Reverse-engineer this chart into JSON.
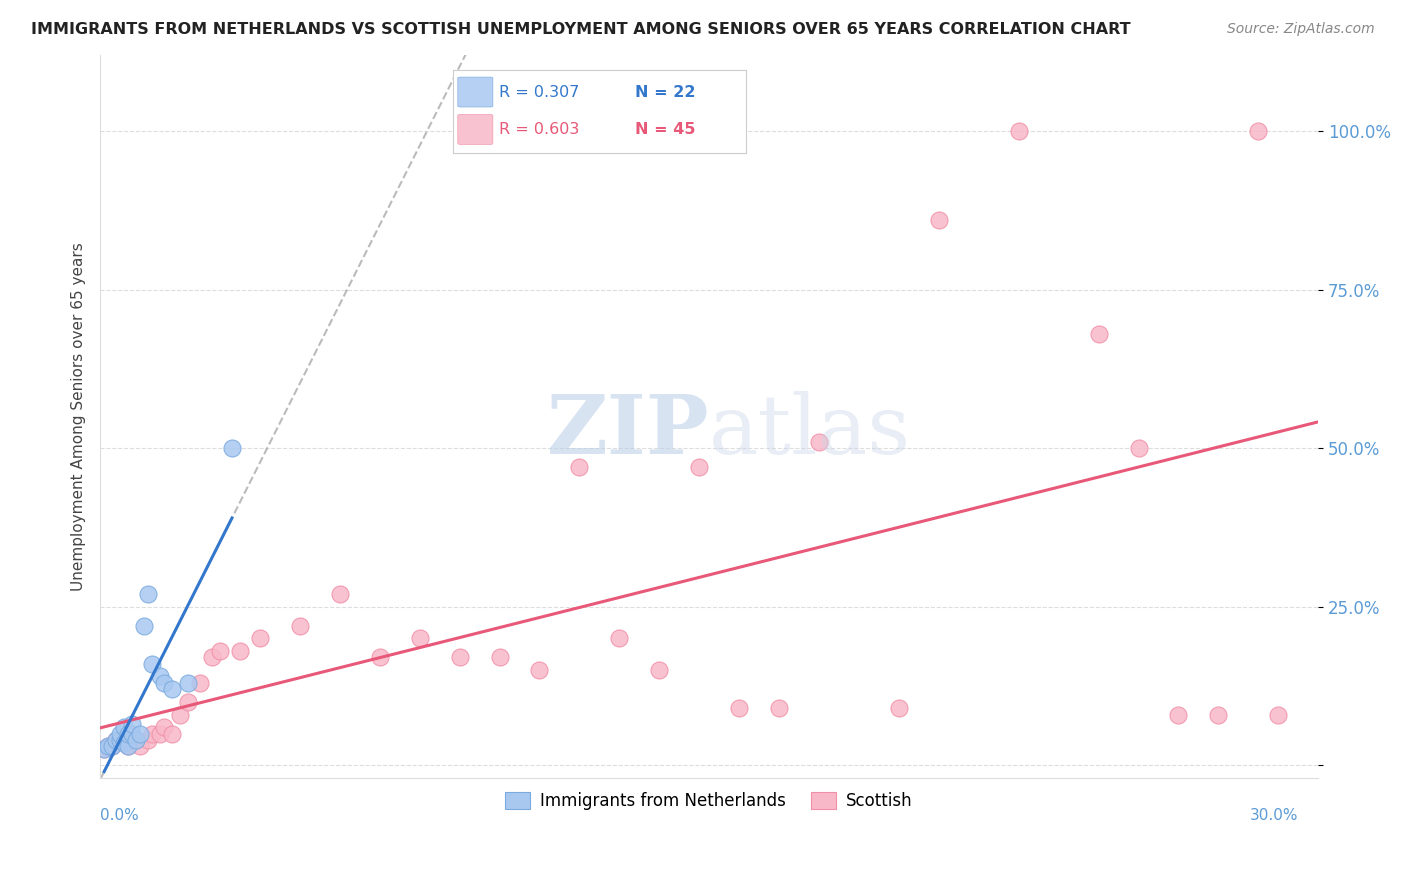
{
  "title": "IMMIGRANTS FROM NETHERLANDS VS SCOTTISH UNEMPLOYMENT AMONG SENIORS OVER 65 YEARS CORRELATION CHART",
  "source": "Source: ZipAtlas.com",
  "ylabel": "Unemployment Among Seniors over 65 years",
  "legend_blue_r": "R = 0.307",
  "legend_blue_n": "N = 22",
  "legend_pink_r": "R = 0.603",
  "legend_pink_n": "N = 45",
  "legend_label_blue": "Immigrants from Netherlands",
  "legend_label_pink": "Scottish",
  "blue_x": [
    0.001,
    0.002,
    0.003,
    0.004,
    0.005,
    0.005,
    0.006,
    0.006,
    0.007,
    0.007,
    0.008,
    0.008,
    0.009,
    0.01,
    0.011,
    0.012,
    0.013,
    0.015,
    0.016,
    0.018,
    0.022,
    0.033
  ],
  "blue_y": [
    0.025,
    0.03,
    0.03,
    0.04,
    0.04,
    0.05,
    0.035,
    0.06,
    0.03,
    0.05,
    0.05,
    0.065,
    0.04,
    0.05,
    0.22,
    0.27,
    0.16,
    0.14,
    0.13,
    0.12,
    0.13,
    0.5
  ],
  "pink_x": [
    0.001,
    0.002,
    0.003,
    0.004,
    0.005,
    0.006,
    0.007,
    0.008,
    0.009,
    0.01,
    0.012,
    0.013,
    0.015,
    0.016,
    0.018,
    0.02,
    0.022,
    0.025,
    0.028,
    0.03,
    0.035,
    0.04,
    0.05,
    0.06,
    0.07,
    0.08,
    0.09,
    0.1,
    0.11,
    0.12,
    0.13,
    0.14,
    0.15,
    0.16,
    0.17,
    0.18,
    0.2,
    0.21,
    0.23,
    0.25,
    0.26,
    0.27,
    0.28,
    0.29,
    0.295
  ],
  "pink_y": [
    0.025,
    0.03,
    0.03,
    0.04,
    0.04,
    0.04,
    0.03,
    0.04,
    0.04,
    0.03,
    0.04,
    0.05,
    0.05,
    0.06,
    0.05,
    0.08,
    0.1,
    0.13,
    0.17,
    0.18,
    0.18,
    0.2,
    0.22,
    0.27,
    0.17,
    0.2,
    0.17,
    0.17,
    0.15,
    0.47,
    0.2,
    0.15,
    0.47,
    0.09,
    0.09,
    0.51,
    0.09,
    0.86,
    1.0,
    0.68,
    0.5,
    0.08,
    0.08,
    1.0,
    0.08
  ],
  "blue_color": "#a8c8f0",
  "pink_color": "#f8b8c8",
  "blue_line_color": "#3378cc",
  "pink_line_color": "#e85878",
  "blue_dot_edge": "#7aaade",
  "pink_dot_edge": "#f090a8",
  "background_color": "#ffffff",
  "grid_color": "#dddddd",
  "tick_color": "#5b9bd5",
  "watermark_zip_color": "#b8cce8",
  "watermark_atlas_color": "#c8d4e8",
  "xlim": [
    0.0,
    0.305
  ],
  "ylim": [
    -0.02,
    1.12
  ],
  "ytick_vals": [
    0.0,
    0.25,
    0.5,
    0.75,
    1.0
  ],
  "ytick_labels": [
    "",
    "25.0%",
    "50.0%",
    "75.0%",
    "100.0%"
  ]
}
